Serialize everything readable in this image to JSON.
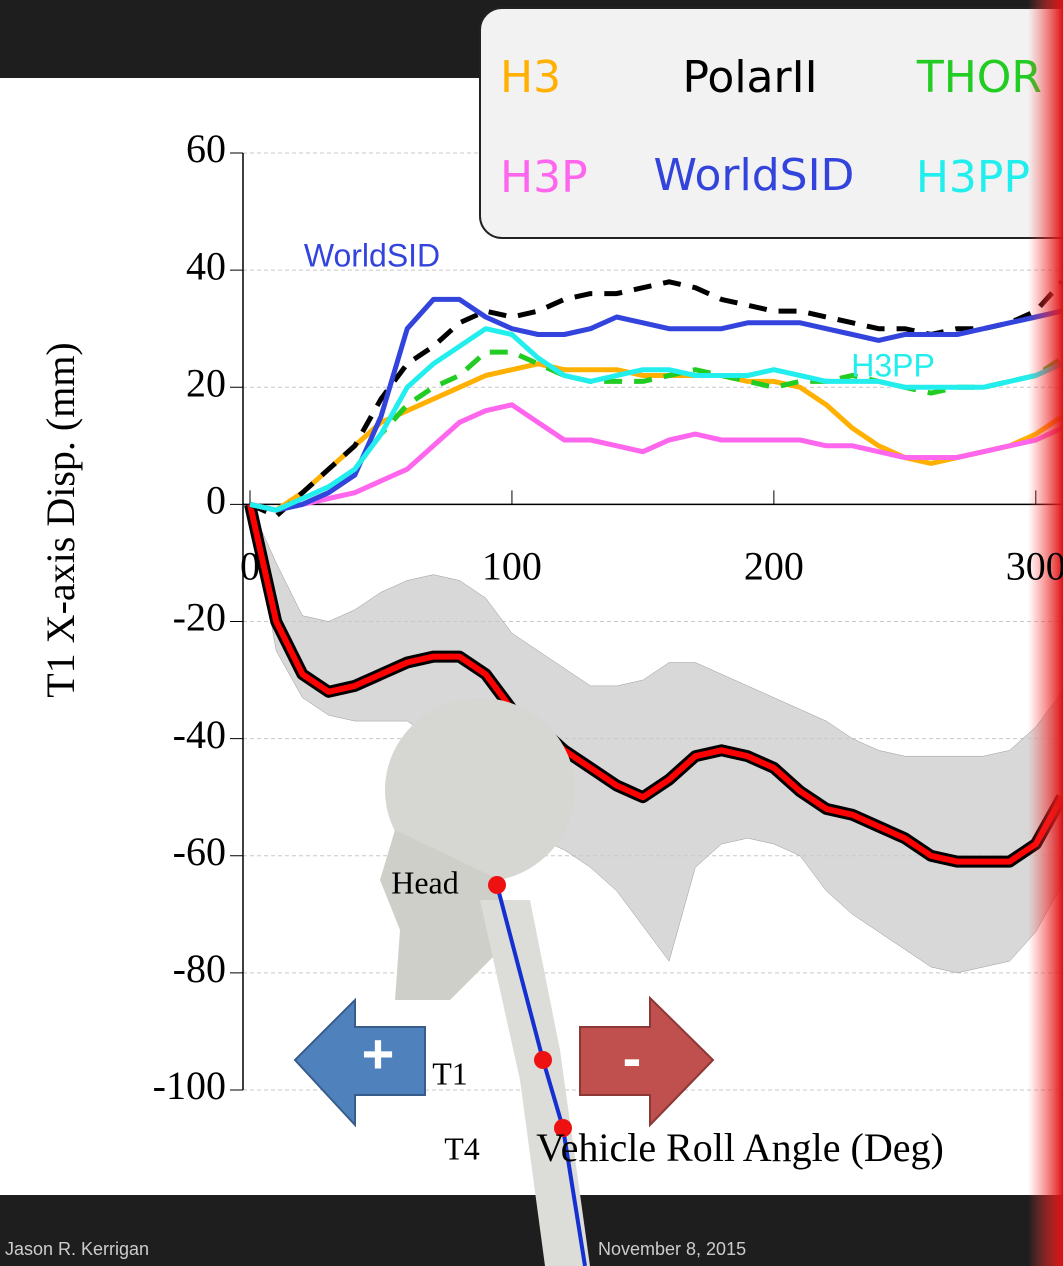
{
  "chart_data": {
    "type": "line",
    "y_label": "T1 X-axis Disp. (mm)",
    "x_label": "Vehicle Roll Angle (Deg)",
    "xlim": [
      0,
      310
    ],
    "xticks": [
      0,
      100,
      200,
      300
    ],
    "ylim": [
      -100,
      60
    ],
    "yticks": [
      -100,
      -80,
      -60,
      -40,
      -20,
      0,
      20,
      40,
      60
    ],
    "grid": true,
    "x": [
      0,
      10,
      20,
      30,
      40,
      50,
      60,
      70,
      80,
      90,
      100,
      110,
      120,
      130,
      140,
      150,
      160,
      170,
      180,
      190,
      200,
      210,
      220,
      230,
      240,
      250,
      260,
      270,
      280,
      290,
      300,
      310
    ],
    "series": [
      {
        "name": "H3",
        "color": "#ffb000",
        "dashed": false,
        "values": [
          0,
          -1,
          2,
          6,
          10,
          14,
          16,
          18,
          20,
          22,
          23,
          24,
          23,
          23,
          23,
          22,
          22,
          22,
          22,
          21,
          21,
          20,
          17,
          13,
          10,
          8,
          7,
          8,
          9,
          10,
          12,
          15
        ]
      },
      {
        "name": "PolarII",
        "color": "#000000",
        "dashed": true,
        "values": [
          0,
          -2,
          2,
          6,
          10,
          18,
          24,
          27,
          31,
          33,
          32,
          33,
          35,
          36,
          36,
          37,
          38,
          37,
          35,
          34,
          33,
          33,
          32,
          31,
          30,
          30,
          29,
          30,
          30,
          31,
          33,
          38
        ]
      },
      {
        "name": "THOR",
        "color": "#22cc22",
        "dashed": true,
        "values": [
          0,
          -1,
          0,
          2,
          6,
          12,
          17,
          20,
          22,
          26,
          26,
          24,
          22,
          21,
          21,
          21,
          22,
          23,
          22,
          21,
          20,
          21,
          21,
          22,
          21,
          20,
          19,
          20,
          20,
          21,
          22,
          25
        ]
      },
      {
        "name": "H3P",
        "color": "#ff66ee",
        "dashed": false,
        "values": [
          0,
          -1,
          0,
          1,
          2,
          4,
          6,
          10,
          14,
          16,
          17,
          14,
          11,
          11,
          10,
          9,
          11,
          12,
          11,
          11,
          11,
          11,
          10,
          10,
          9,
          8,
          8,
          8,
          9,
          10,
          11,
          13
        ]
      },
      {
        "name": "WorldSID",
        "color": "#3344dd",
        "dashed": false,
        "values": [
          0,
          -1,
          0,
          2,
          5,
          15,
          30,
          35,
          35,
          32,
          30,
          29,
          29,
          30,
          32,
          31,
          30,
          30,
          30,
          31,
          31,
          31,
          30,
          29,
          28,
          29,
          29,
          29,
          30,
          31,
          32,
          33
        ]
      },
      {
        "name": "H3PP",
        "color": "#22eeee",
        "dashed": false,
        "values": [
          0,
          -1,
          1,
          3,
          6,
          12,
          20,
          24,
          27,
          30,
          29,
          25,
          22,
          21,
          22,
          23,
          23,
          22,
          22,
          22,
          23,
          22,
          21,
          21,
          21,
          20,
          20,
          20,
          20,
          21,
          22,
          24
        ]
      }
    ],
    "pmhs": {
      "color": "#ff0000",
      "values": [
        0,
        -20,
        -29,
        -32,
        -31,
        -29,
        -27,
        -26,
        -26,
        -29,
        -35,
        -38,
        -42,
        -45,
        -48,
        -50,
        -47,
        -43,
        -42,
        -43,
        -45,
        -49,
        -52,
        -53,
        -55,
        -57,
        -60,
        -61,
        -61,
        -61,
        -58,
        -50
      ]
    },
    "corridor": {
      "color": "#c8c8c8",
      "upper": [
        0,
        -10,
        -19,
        -20,
        -18,
        -15,
        -13,
        -12,
        -13,
        -16,
        -22,
        -25,
        -28,
        -31,
        -31,
        -30,
        -27,
        -27,
        -29,
        -31,
        -33,
        -35,
        -37,
        -40,
        -42,
        -43,
        -43,
        -43,
        -43,
        -42,
        -38,
        -32
      ],
      "lower": [
        0,
        -25,
        -33,
        -36,
        -37,
        -37,
        -37,
        -40,
        -47,
        -52,
        -56,
        -57,
        -59,
        -62,
        -66,
        -72,
        -78,
        -62,
        -58,
        -57,
        -58,
        -60,
        -66,
        -70,
        -73,
        -76,
        -79,
        -80,
        -79,
        -78,
        -73,
        -65
      ]
    },
    "annotations": [
      "WorldSID",
      "H3PP"
    ]
  },
  "figure": {
    "head": "Head",
    "t1": "T1",
    "t4": "T4",
    "plus": "+",
    "minus": "-"
  },
  "footer": {
    "author": "Jason R. Kerrigan",
    "date": "November 8, 2015"
  }
}
